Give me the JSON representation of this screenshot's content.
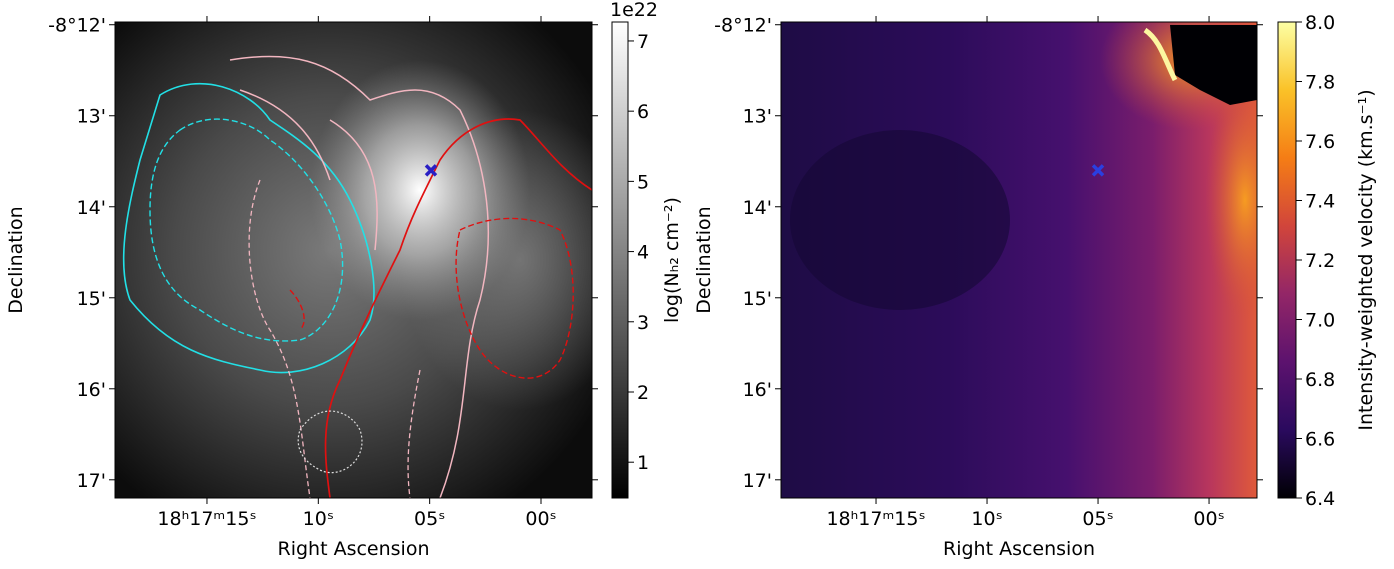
{
  "chart_data": [
    {
      "type": "image",
      "x_label": "Right Ascension",
      "y_label": "Declination",
      "xlim": [
        19.13,
        -2.29
      ],
      "ylim": [
        17.2,
        11.97
      ],
      "xticks": [
        {
          "value": 15,
          "label": "18ʰ17ᵐ15ˢ"
        },
        {
          "value": 10,
          "label": "10ˢ"
        },
        {
          "value": 5,
          "label": "05ˢ"
        },
        {
          "value": 0,
          "label": "00ˢ"
        }
      ],
      "yticks": [
        {
          "value": 12,
          "label": "-8°12'"
        },
        {
          "value": 13,
          "label": "13'"
        },
        {
          "value": 14,
          "label": "14'"
        },
        {
          "value": 15,
          "label": "15'"
        },
        {
          "value": 16,
          "label": "16'"
        },
        {
          "value": 17,
          "label": "17'"
        }
      ],
      "marker": {
        "x": 4.94,
        "y": 13.6,
        "color": "#2a1fc4"
      },
      "colorbar": {
        "label": "log(Nₕ₂ cm⁻²)",
        "offset": "1e22",
        "lim": [
          0.49,
          7.27
        ],
        "ticks": [
          1,
          2,
          3,
          4,
          5,
          6,
          7
        ],
        "colors": [
          "#000000",
          "#ffffff"
        ]
      }
    },
    {
      "type": "image",
      "x_label": "Right Ascension",
      "y_label": "Declination",
      "xlim": [
        19.28,
        -2.16
      ],
      "ylim": [
        17.2,
        11.97
      ],
      "xticks": [
        {
          "value": 15,
          "label": "18ʰ17ᵐ15ˢ"
        },
        {
          "value": 10,
          "label": "10ˢ"
        },
        {
          "value": 5,
          "label": "05ˢ"
        },
        {
          "value": 0,
          "label": "00ˢ"
        }
      ],
      "yticks": [
        {
          "value": 12,
          "label": "-8°12'"
        },
        {
          "value": 13,
          "label": "13'"
        },
        {
          "value": 14,
          "label": "14'"
        },
        {
          "value": 15,
          "label": "15'"
        },
        {
          "value": 16,
          "label": "16'"
        },
        {
          "value": 17,
          "label": "17'"
        }
      ],
      "marker": {
        "x": 5.0,
        "y": 13.6,
        "color": "#2a3fe0"
      },
      "colorbar": {
        "label": "Intensity-weighted velocity (km.s⁻¹)",
        "lim": [
          6.4,
          8.0
        ],
        "ticks": [
          6.4,
          6.6,
          6.8,
          {
            "value": 7,
            "label": "7.0"
          },
          7.2,
          7.4,
          7.6,
          7.8,
          {
            "value": 8,
            "label": "8.0"
          }
        ],
        "colors": [
          "#000004",
          "#2a0a5e",
          "#5c126e",
          "#932667",
          "#d1453b",
          "#f57d15",
          "#fac228",
          "#fcffa4"
        ]
      }
    }
  ]
}
